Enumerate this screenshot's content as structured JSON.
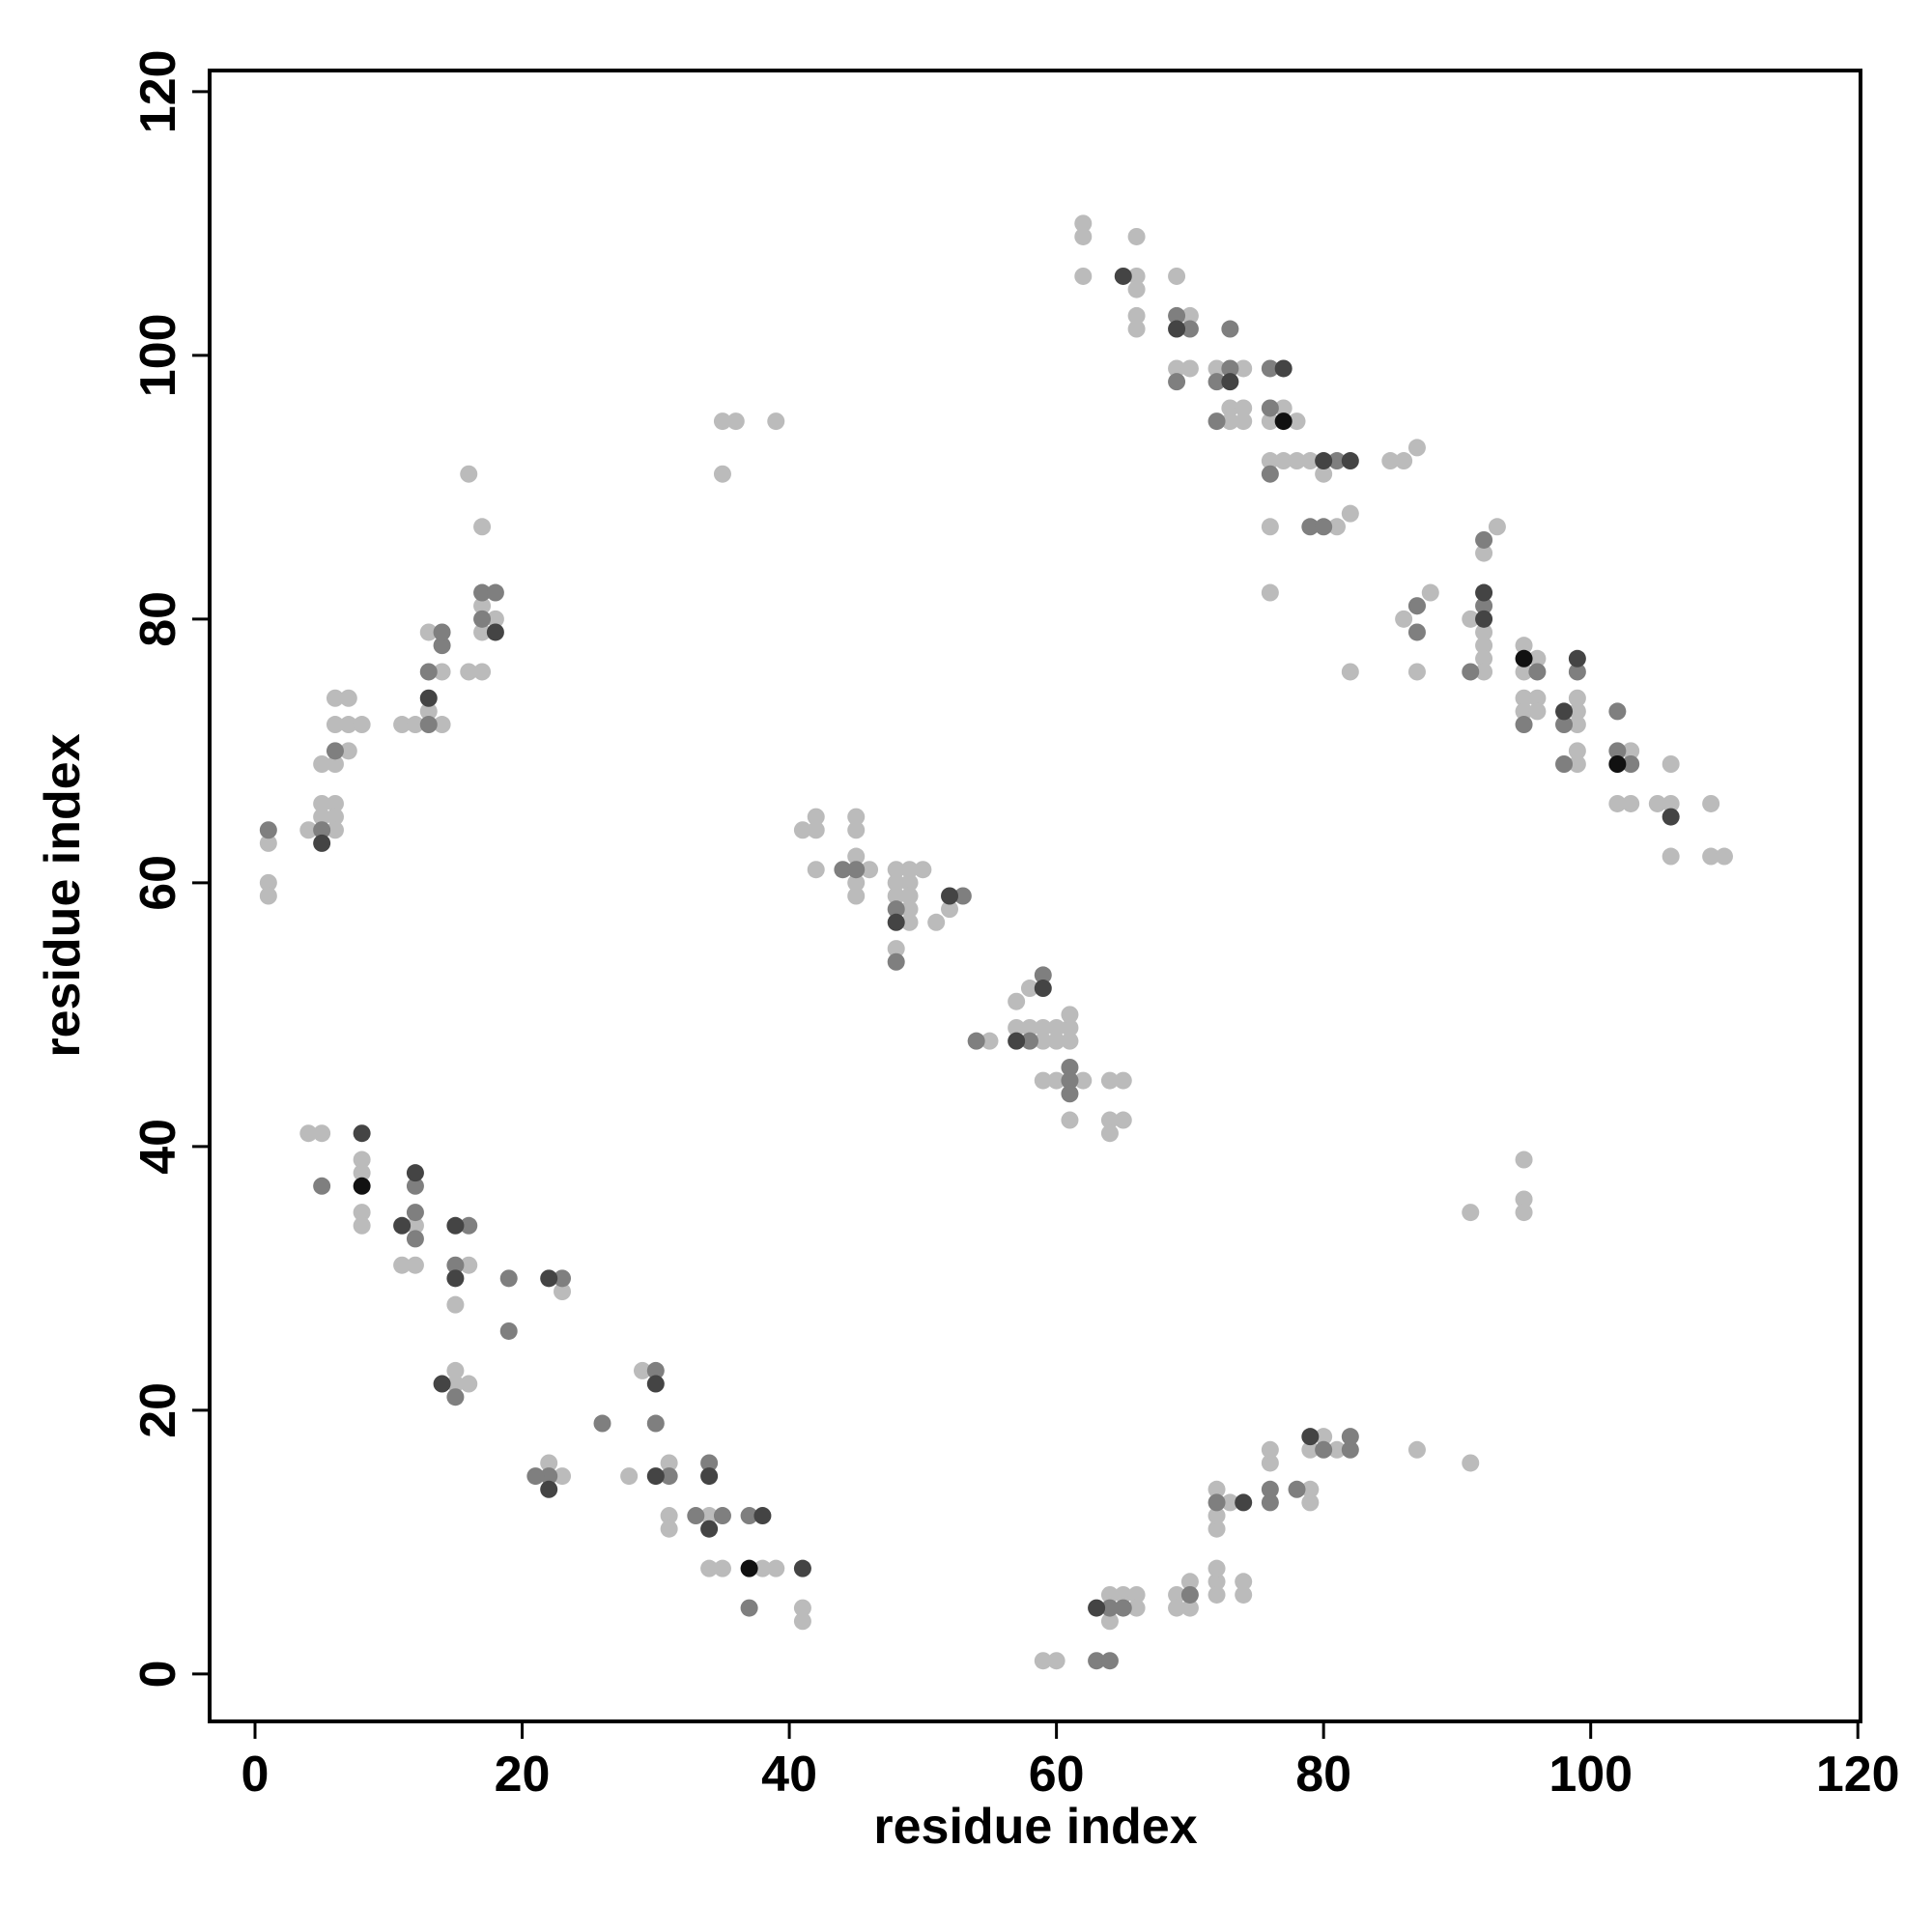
{
  "chart_data": {
    "type": "scatter",
    "x_label": "residue index",
    "y_label": "residue index",
    "xlim": [
      -3.4,
      120.2
    ],
    "ylim": [
      -3.6,
      121.6
    ],
    "xticks": [
      0,
      20,
      40,
      60,
      80,
      100,
      120
    ],
    "yticks": [
      0,
      20,
      40,
      60,
      80,
      100,
      120
    ],
    "series": [
      {
        "color": "#bbbbbb",
        "x": [
          1,
          1,
          1,
          4,
          5,
          5,
          6,
          6,
          6,
          5,
          6,
          7,
          6,
          7,
          8,
          6,
          7,
          11,
          12,
          14,
          13,
          14,
          13,
          16,
          17,
          17,
          18,
          17,
          17,
          16,
          35,
          36,
          39,
          35,
          62,
          62,
          66,
          62,
          66,
          66,
          69,
          66,
          66,
          70,
          69,
          70,
          72,
          74,
          73,
          74,
          73,
          74,
          77,
          76,
          78,
          76,
          77,
          78,
          79,
          80,
          81,
          76,
          82,
          76,
          85,
          86,
          87,
          86,
          87,
          88,
          87,
          82,
          91,
          92,
          92,
          92,
          92,
          92,
          93,
          95,
          95,
          96,
          95,
          95,
          96,
          96,
          99,
          99,
          99,
          99,
          99,
          103,
          102,
          103,
          105,
          106,
          106,
          106,
          109,
          109,
          110,
          41,
          42,
          42,
          42,
          46,
          45,
          45,
          45,
          45,
          45,
          48,
          49,
          50,
          48,
          49,
          48,
          49,
          49,
          49,
          48,
          51,
          52,
          55,
          57,
          58,
          57,
          58,
          59,
          60,
          61,
          61,
          59,
          60,
          61,
          59,
          60,
          62,
          61,
          64,
          65,
          64,
          65,
          64,
          4,
          5,
          8,
          8,
          8,
          8,
          12,
          11,
          12,
          16,
          15,
          23,
          15,
          15,
          16,
          22,
          23,
          28,
          29,
          31,
          31,
          31,
          34,
          34,
          35,
          38,
          39,
          41,
          41,
          59,
          60,
          64,
          65,
          66,
          66,
          64,
          69,
          69,
          70,
          70,
          72,
          72,
          72,
          74,
          74,
          72,
          72,
          72,
          73,
          76,
          76,
          79,
          79,
          79,
          80,
          81,
          87,
          91,
          91,
          95,
          95,
          95
        ],
        "y": [
          63,
          60,
          59,
          64,
          65,
          66,
          66,
          65,
          64,
          69,
          69,
          70,
          72,
          72,
          72,
          74,
          74,
          72,
          72,
          72,
          73,
          76,
          79,
          76,
          76,
          79,
          80,
          81,
          87,
          91,
          95,
          95,
          95,
          91,
          110,
          109,
          109,
          106,
          106,
          105,
          106,
          103,
          102,
          103,
          99,
          99,
          99,
          99,
          96,
          96,
          95,
          95,
          96,
          95,
          95,
          92,
          92,
          92,
          92,
          91,
          87,
          87,
          88,
          82,
          92,
          92,
          93,
          80,
          81,
          82,
          76,
          76,
          80,
          79,
          78,
          77,
          76,
          85,
          87,
          78,
          76,
          77,
          74,
          73,
          74,
          73,
          73,
          72,
          74,
          70,
          69,
          70,
          66,
          66,
          66,
          66,
          69,
          62,
          66,
          62,
          62,
          64,
          64,
          65,
          61,
          61,
          62,
          60,
          59,
          64,
          65,
          61,
          61,
          61,
          60,
          60,
          59,
          59,
          58,
          57,
          55,
          57,
          58,
          48,
          51,
          52,
          49,
          49,
          49,
          49,
          49,
          50,
          48,
          48,
          48,
          45,
          45,
          45,
          42,
          45,
          45,
          42,
          42,
          41,
          41,
          41,
          39,
          38,
          35,
          34,
          34,
          31,
          31,
          31,
          28,
          29,
          22,
          23,
          22,
          16,
          15,
          15,
          23,
          16,
          12,
          11,
          12,
          8,
          8,
          8,
          8,
          5,
          4,
          1,
          1,
          6,
          6,
          6,
          5,
          4,
          6,
          5,
          5,
          7,
          7,
          6,
          8,
          7,
          6,
          11,
          12,
          14,
          13,
          16,
          17,
          14,
          13,
          17,
          18,
          17,
          17,
          16,
          35,
          39,
          36,
          35
        ]
      },
      {
        "color": "#7f7f7f",
        "x": [
          1,
          5,
          6,
          13,
          13,
          14,
          14,
          17,
          17,
          18,
          69,
          70,
          73,
          73,
          69,
          72,
          72,
          76,
          76,
          81,
          76,
          79,
          80,
          87,
          87,
          92,
          91,
          92,
          96,
          95,
          98,
          99,
          98,
          102,
          102,
          103,
          44,
          45,
          48,
          48,
          53,
          54,
          59,
          58,
          61,
          61,
          61,
          5,
          12,
          12,
          12,
          16,
          15,
          19,
          19,
          23,
          15,
          22,
          21,
          26,
          30,
          30,
          31,
          33,
          35,
          34,
          37,
          37,
          63,
          64,
          64,
          65,
          70,
          72,
          76,
          76,
          78,
          80,
          82,
          82
        ],
        "y": [
          64,
          64,
          70,
          72,
          76,
          78,
          79,
          80,
          82,
          82,
          103,
          102,
          102,
          99,
          98,
          98,
          95,
          99,
          96,
          92,
          91,
          87,
          87,
          79,
          81,
          81,
          76,
          86,
          76,
          72,
          72,
          76,
          69,
          73,
          70,
          69,
          61,
          61,
          58,
          54,
          59,
          48,
          53,
          48,
          45,
          46,
          44,
          37,
          35,
          33,
          37,
          34,
          31,
          30,
          26,
          30,
          21,
          15,
          15,
          19,
          23,
          19,
          15,
          12,
          12,
          16,
          12,
          5,
          1,
          1,
          5,
          5,
          6,
          13,
          13,
          14,
          14,
          17,
          17,
          18
        ]
      },
      {
        "color": "#444444",
        "x": [
          5,
          13,
          18,
          65,
          69,
          73,
          77,
          80,
          82,
          92,
          92,
          98,
          99,
          106,
          48,
          52,
          57,
          59,
          8,
          11,
          12,
          15,
          15,
          22,
          14,
          22,
          30,
          30,
          34,
          34,
          38,
          41,
          63,
          74,
          79
        ],
        "y": [
          63,
          74,
          79,
          106,
          102,
          98,
          99,
          92,
          92,
          80,
          82,
          73,
          77,
          65,
          57,
          59,
          48,
          52,
          41,
          34,
          38,
          34,
          30,
          30,
          22,
          14,
          22,
          15,
          11,
          15,
          12,
          8,
          5,
          13,
          18
        ]
      },
      {
        "color": "#111111",
        "x": [
          77,
          95,
          102,
          8,
          37
        ],
        "y": [
          95,
          77,
          69,
          37,
          8
        ]
      }
    ]
  }
}
